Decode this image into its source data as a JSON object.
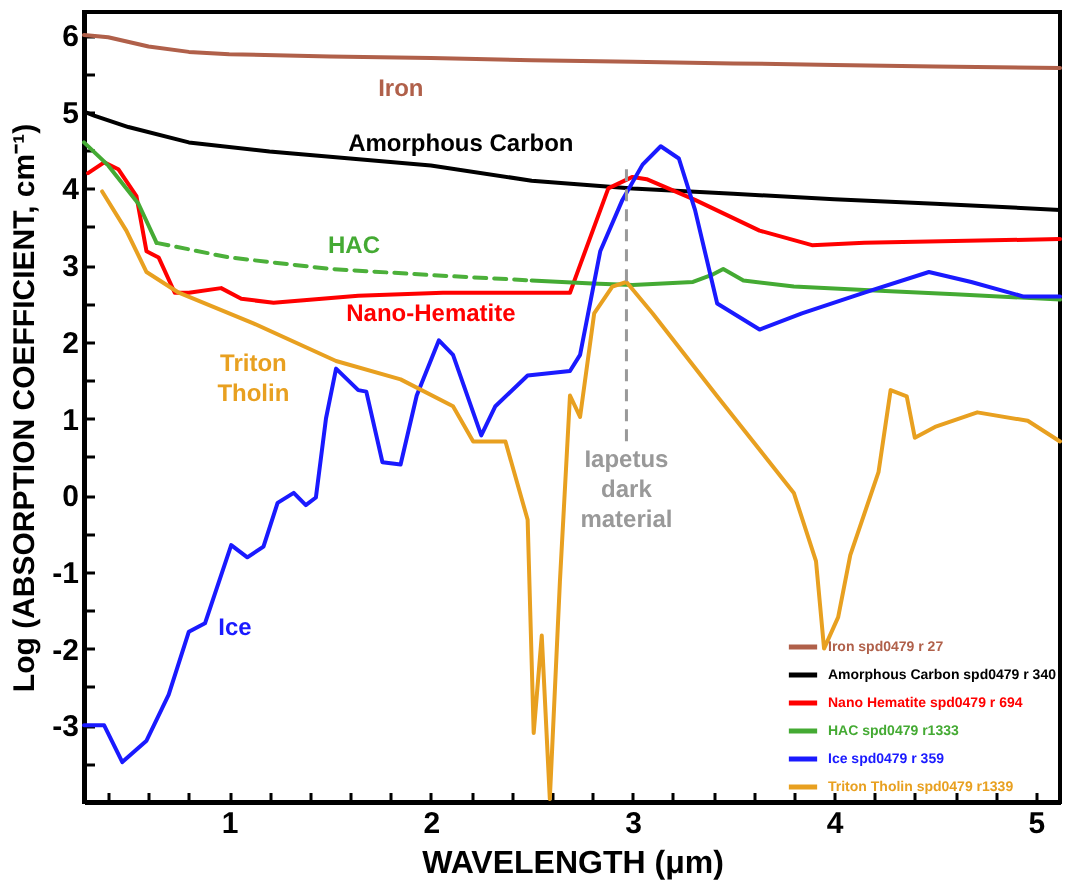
{
  "chart_data": {
    "type": "line",
    "xlabel": "WAVELENGTH (μm)",
    "ylabel": "Log (ABSORPTION COEFFICIENT, cm⁻¹)",
    "xlim": [
      0.28,
      5.12
    ],
    "ylim": [
      -4,
      6.3
    ],
    "xticks": [
      {
        "value": 0.4,
        "label": null
      },
      {
        "value": 0.6,
        "label": null
      },
      {
        "value": 0.8,
        "label": null
      },
      1,
      {
        "value": 1.2,
        "label": null
      },
      {
        "value": 1.4,
        "label": null
      },
      {
        "value": 1.6,
        "label": null
      },
      {
        "value": 1.8,
        "label": null
      },
      2,
      {
        "value": 2.2,
        "label": null
      },
      {
        "value": 2.4,
        "label": null
      },
      {
        "value": 2.6,
        "label": null
      },
      {
        "value": 2.8,
        "label": null
      },
      3,
      {
        "value": 3.2,
        "label": null
      },
      {
        "value": 3.4,
        "label": null
      },
      {
        "value": 3.6,
        "label": null
      },
      {
        "value": 3.8,
        "label": null
      },
      4,
      {
        "value": 4.2,
        "label": null
      },
      {
        "value": 4.4,
        "label": null
      },
      {
        "value": 4.6,
        "label": null
      },
      {
        "value": 4.8,
        "label": null
      },
      5
    ],
    "yticks": [
      {
        "value": -3.5,
        "label": null
      },
      -3,
      {
        "value": -2.5,
        "label": null
      },
      -2,
      {
        "value": -1.5,
        "label": null
      },
      -1,
      {
        "value": -0.5,
        "label": null
      },
      0,
      {
        "value": 0.5,
        "label": null
      },
      1,
      {
        "value": 1.5,
        "label": null
      },
      2,
      {
        "value": 2.5,
        "label": null
      },
      3,
      {
        "value": 3.5,
        "label": null
      },
      4,
      {
        "value": 4.5,
        "label": null
      },
      5,
      {
        "value": 5.5,
        "label": null
      },
      6
    ],
    "grid": false,
    "marker": "none",
    "legend": "bottom right",
    "series": [
      {
        "name": "Iron spd0479 r 27",
        "color": "#b0604a",
        "x": [
          0.28,
          0.4,
          0.6,
          0.8,
          1.0,
          1.5,
          2,
          2.5,
          3,
          3.5,
          4,
          4.5,
          5.12
        ],
        "values": [
          6.0,
          5.97,
          5.85,
          5.78,
          5.75,
          5.72,
          5.7,
          5.67,
          5.65,
          5.63,
          5.61,
          5.59,
          5.57
        ]
      },
      {
        "name": "Amorphous Carbon spd0479 r 340",
        "color": "#000000",
        "x": [
          0.28,
          0.33,
          0.5,
          0.8,
          1.2,
          1.6,
          2,
          2.5,
          3,
          3.5,
          4,
          4.5,
          5.12
        ],
        "values": [
          5.0,
          4.95,
          4.8,
          4.6,
          4.48,
          4.39,
          4.3,
          4.1,
          4.0,
          3.93,
          3.86,
          3.8,
          3.72
        ]
      },
      {
        "name": "Nano Hematite spd0479 r 694",
        "color": "#ff0000",
        "x": [
          0.3,
          0.38,
          0.45,
          0.54,
          0.59,
          0.65,
          0.73,
          0.8,
          0.96,
          1.06,
          1.22,
          1.64,
          2.06,
          2.27,
          2.69,
          2.74,
          2.88,
          3.0,
          3.07,
          3.31,
          3.63,
          3.89,
          4.15,
          5.12
        ],
        "values": [
          4.2,
          4.34,
          4.25,
          3.9,
          3.18,
          3.1,
          2.64,
          2.64,
          2.7,
          2.56,
          2.51,
          2.6,
          2.64,
          2.64,
          2.64,
          3.0,
          4.0,
          4.15,
          4.12,
          3.85,
          3.45,
          3.26,
          3.29,
          3.34
        ]
      },
      {
        "name": "HAC spd0479 r1333",
        "color": "#44aa33",
        "x": [
          0.28,
          0.4,
          0.55,
          0.64,
          1.5,
          2.5,
          2.8,
          3.0,
          3.3,
          3.4,
          3.45,
          3.55,
          3.8,
          4.2,
          4.6,
          5.12
        ],
        "values": [
          4.6,
          4.3,
          3.8,
          3.29,
          null,
          2.8,
          2.76,
          2.74,
          2.78,
          2.88,
          2.95,
          2.8,
          2.72,
          2.67,
          2.62,
          2.55
        ]
      },
      {
        "color": "#4cb03a",
        "line_style": "dashed",
        "x": [
          0.64,
          1.0,
          1.5,
          2,
          2.5
        ],
        "values": [
          3.29,
          3.1,
          2.95,
          2.87,
          2.8
        ]
      },
      {
        "name": "Ice spd0479 r 359",
        "color": "#1a1aff",
        "x": [
          0.28,
          0.38,
          0.47,
          0.59,
          0.7,
          0.8,
          0.88,
          1.01,
          1.09,
          1.17,
          1.24,
          1.32,
          1.38,
          1.43,
          1.48,
          1.53,
          1.64,
          1.68,
          1.76,
          1.85,
          1.93,
          2.04,
          2.11,
          2.25,
          2.32,
          2.48,
          2.69,
          2.74,
          2.84,
          2.95,
          3.05,
          3.14,
          3.23,
          3.31,
          3.42,
          3.63,
          3.84,
          4.15,
          4.47,
          4.68,
          4.94,
          5.12
        ],
        "values": [
          -3.0,
          -3.0,
          -3.48,
          -3.2,
          -2.6,
          -1.78,
          -1.67,
          -0.65,
          -0.81,
          -0.67,
          -0.1,
          0.03,
          -0.13,
          -0.03,
          1.0,
          1.65,
          1.37,
          1.35,
          0.43,
          0.4,
          1.3,
          2.02,
          1.83,
          0.78,
          1.16,
          1.56,
          1.62,
          1.83,
          3.18,
          3.85,
          4.31,
          4.55,
          4.39,
          3.72,
          2.5,
          2.16,
          2.37,
          2.64,
          2.91,
          2.78,
          2.59,
          2.59
        ]
      },
      {
        "name": "Triton Tholin spd0479 r1339",
        "color": "#e8a020",
        "x": [
          0.37,
          0.49,
          0.59,
          0.75,
          1.12,
          1.53,
          1.85,
          2.11,
          2.21,
          2.37,
          2.48,
          2.51,
          2.55,
          2.59,
          2.64,
          2.69,
          2.74,
          2.81,
          2.9,
          2.97,
          3.1,
          3.42,
          3.8,
          3.91,
          3.95,
          4.02,
          4.08,
          4.22,
          4.28,
          4.36,
          4.4,
          4.5,
          4.71,
          4.96,
          5.12
        ],
        "values": [
          3.96,
          3.45,
          2.91,
          2.64,
          2.24,
          1.75,
          1.51,
          1.16,
          0.7,
          0.7,
          -0.32,
          -3.1,
          -1.83,
          -3.96,
          -1.13,
          1.3,
          1.02,
          2.37,
          2.72,
          2.78,
          2.37,
          1.29,
          0.03,
          -0.86,
          -2.0,
          -1.59,
          -0.78,
          0.3,
          1.37,
          1.29,
          0.75,
          0.89,
          1.08,
          0.97,
          0.7
        ]
      }
    ],
    "ref_lines": [
      {
        "axis": "x",
        "value": 2.97,
        "color": "#999999",
        "line_style": "dashed"
      }
    ],
    "annotations": [
      {
        "text": "Iron",
        "x": 2,
        "y": 5.7
      },
      {
        "text": "Amorphous Carbon",
        "x": 2,
        "y": 4.3
      },
      {
        "text": "Nano-Hematite",
        "x": 2.06,
        "y": 2.64
      },
      {
        "text": "HAC",
        "x": 1.5,
        "y": 2.95
      },
      {
        "text": "Ice",
        "x": 0.88,
        "y": -1.67
      },
      {
        "text": "Triton\nTholin",
        "x": 1.12,
        "y": 2.24
      },
      {
        "text": "Iapetus\ndark\nmaterial",
        "x": 2.97,
        "y": 0.6
      }
    ]
  }
}
